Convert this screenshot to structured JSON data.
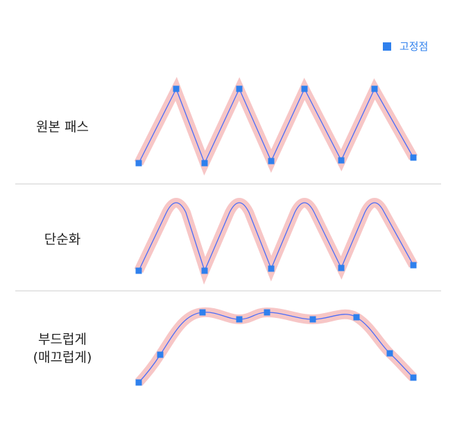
{
  "legend": {
    "label": "고정점",
    "color": "#2f80ed"
  },
  "colors": {
    "highlight": "#f7c6c6",
    "line": "#4a6cf7",
    "anchor": "#2f80ed"
  },
  "rows": [
    {
      "id": "original",
      "label": "원본 패스"
    },
    {
      "id": "simplify",
      "label": "단순화"
    },
    {
      "id": "smooth",
      "label": "부드럽게\n(매끄럽게)"
    }
  ]
}
